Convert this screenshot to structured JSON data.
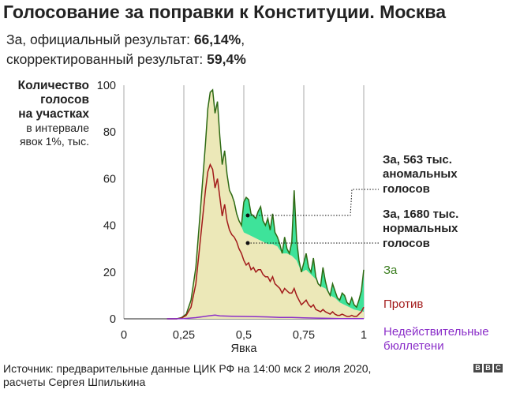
{
  "title": "Голосование за поправки к Конституции. Москва",
  "subtitle": {
    "line1_prefix": "За, официальный результат: ",
    "line1_value": "66,14%",
    "line1_suffix": ",",
    "line2_prefix": "скорректированный результат: ",
    "line2_value": "59,4%"
  },
  "y_label_bold": [
    "Количество",
    "голосов",
    "на участках"
  ],
  "y_label_regular": [
    "в интервале",
    "явок 1%, тыс."
  ],
  "annotations": {
    "anomalous": [
      "За, 563 тыс.",
      "аномальных",
      "голосов"
    ],
    "normal": [
      "За, 1680 тыс.",
      "нормальных",
      "голосов"
    ]
  },
  "legend": {
    "za": {
      "label": "За",
      "color": "#3a7d1e"
    },
    "protiv": {
      "label": "Против",
      "color": "#a21b1b"
    },
    "invalid": {
      "label": [
        "Недействительные",
        "бюллетени"
      ],
      "color": "#8b2fc9"
    }
  },
  "colors": {
    "normal_fill": "#ece8b8",
    "anomalous_fill": "#3ee39a",
    "za_line": "#2e6a14",
    "protiv_line": "#a21b1b",
    "invalid_line": "#8b2fc9",
    "grid": "#aaaaaa"
  },
  "source": [
    "Источник: предварительные данные ЦИК РФ на 14:00 мск 2 июля 2020,",
    "расчеты Сергея Шпилькина"
  ],
  "logo": [
    "B",
    "B",
    "C"
  ],
  "chart_data": {
    "type": "line",
    "xlabel": "Явка",
    "x_ticks": [
      0,
      0.25,
      0.5,
      0.75,
      1
    ],
    "x_tick_labels": [
      "0",
      "0,25",
      "0,5",
      "0,75",
      "1"
    ],
    "y_ticks": [
      0,
      20,
      40,
      60,
      80,
      100
    ],
    "xlim": [
      0,
      1
    ],
    "ylim": [
      0,
      100
    ],
    "grid": true,
    "series": [
      {
        "name": "За",
        "x": [
          0.18,
          0.22,
          0.24,
          0.26,
          0.28,
          0.3,
          0.32,
          0.34,
          0.35,
          0.36,
          0.37,
          0.38,
          0.39,
          0.4,
          0.41,
          0.42,
          0.43,
          0.44,
          0.45,
          0.46,
          0.47,
          0.48,
          0.49,
          0.5,
          0.51,
          0.52,
          0.53,
          0.54,
          0.55,
          0.56,
          0.57,
          0.58,
          0.59,
          0.6,
          0.61,
          0.62,
          0.63,
          0.64,
          0.65,
          0.66,
          0.67,
          0.68,
          0.69,
          0.7,
          0.71,
          0.72,
          0.73,
          0.74,
          0.75,
          0.76,
          0.77,
          0.78,
          0.79,
          0.8,
          0.81,
          0.82,
          0.83,
          0.84,
          0.85,
          0.86,
          0.87,
          0.88,
          0.89,
          0.9,
          0.91,
          0.92,
          0.93,
          0.94,
          0.95,
          0.96,
          0.97,
          0.98,
          0.99,
          1.0
        ],
        "values": [
          0,
          0,
          0.5,
          2,
          8,
          22,
          48,
          75,
          90,
          97,
          98,
          88,
          93,
          78,
          66,
          72,
          62,
          55,
          53,
          50,
          45,
          42,
          40,
          50,
          52,
          51,
          45,
          44,
          43,
          46,
          48,
          42,
          40,
          43,
          38,
          45,
          37,
          35,
          32,
          28,
          35,
          30,
          28,
          33,
          55,
          34,
          25,
          20,
          24,
          28,
          22,
          20,
          26,
          18,
          15,
          14,
          22,
          16,
          12,
          10,
          15,
          12,
          9,
          8,
          11,
          10,
          7,
          6,
          9,
          6,
          5,
          8,
          12,
          21
        ]
      },
      {
        "name": "Против",
        "x": [
          0.18,
          0.22,
          0.24,
          0.26,
          0.28,
          0.3,
          0.32,
          0.34,
          0.35,
          0.36,
          0.37,
          0.38,
          0.39,
          0.4,
          0.41,
          0.42,
          0.43,
          0.44,
          0.45,
          0.46,
          0.47,
          0.48,
          0.49,
          0.5,
          0.51,
          0.52,
          0.53,
          0.54,
          0.55,
          0.56,
          0.57,
          0.58,
          0.59,
          0.6,
          0.61,
          0.62,
          0.63,
          0.64,
          0.65,
          0.66,
          0.67,
          0.68,
          0.69,
          0.7,
          0.71,
          0.72,
          0.73,
          0.74,
          0.75,
          0.76,
          0.77,
          0.78,
          0.79,
          0.8,
          0.81,
          0.82,
          0.83,
          0.84,
          0.85,
          0.86,
          0.87,
          0.88,
          0.89,
          0.9,
          0.91,
          0.92,
          0.93,
          0.94,
          0.95,
          0.96,
          0.97,
          0.98,
          0.99,
          1.0
        ],
        "values": [
          0,
          0,
          0.3,
          1.5,
          5,
          15,
          35,
          55,
          63,
          66,
          64,
          56,
          60,
          52,
          44,
          49,
          42,
          38,
          36,
          35,
          33,
          30,
          28,
          25,
          23,
          24,
          21,
          22,
          20,
          21,
          21,
          19,
          18,
          18,
          16,
          18,
          15,
          14,
          13,
          11,
          13,
          12,
          11,
          11,
          13,
          10,
          8,
          6,
          7,
          8,
          6,
          5,
          6,
          4,
          3.5,
          3,
          4,
          3,
          2.5,
          2,
          3,
          2,
          1.5,
          1.5,
          2,
          1.5,
          1,
          1,
          1.5,
          1,
          1,
          2,
          3,
          5
        ]
      },
      {
        "name": "Недействительные бюллетени",
        "x": [
          0.18,
          0.25,
          0.3,
          0.35,
          0.38,
          0.4,
          0.45,
          0.5,
          0.55,
          0.6,
          0.65,
          0.7,
          0.75,
          0.8,
          0.85,
          0.9,
          0.95,
          1.0
        ],
        "values": [
          0,
          0.1,
          0.5,
          1.2,
          1.6,
          1.3,
          1.1,
          1.0,
          0.9,
          0.8,
          0.6,
          0.6,
          0.4,
          0.3,
          0.2,
          0.1,
          0.1,
          0.1
        ]
      },
      {
        "name": "",
        "x": [
          0.48,
          0.5,
          0.52,
          0.54,
          0.56,
          0.58,
          0.6,
          0.62,
          0.64,
          0.66,
          0.68,
          0.7,
          0.72,
          0.74,
          0.76,
          0.78,
          0.8,
          0.82,
          0.84,
          0.86,
          0.88,
          0.9,
          0.92,
          0.94,
          0.96,
          0.98,
          1.0
        ],
        "values": [
          42,
          37,
          36,
          35,
          34,
          33,
          32,
          32,
          31,
          30,
          28,
          27,
          25,
          23,
          21,
          19,
          17,
          15,
          13,
          11,
          9,
          7,
          6,
          5,
          4,
          3.5,
          3
        ]
      }
    ]
  }
}
